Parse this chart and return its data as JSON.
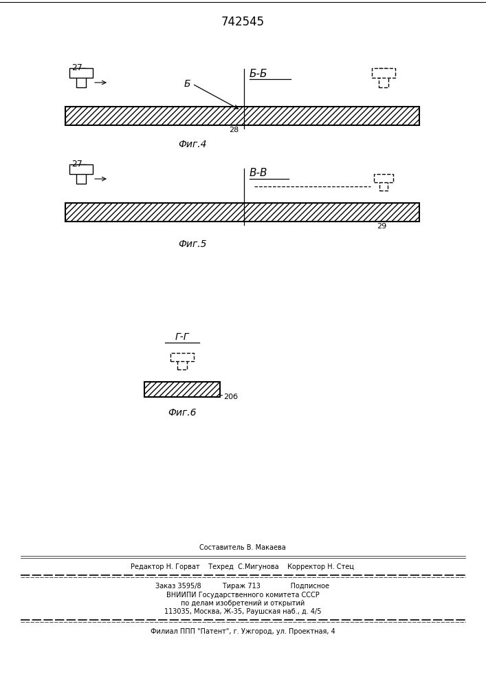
{
  "title": "742545",
  "bg_color": "#ffffff",
  "fig4_label": "Фиг.4",
  "fig5_label": "Фиг.5",
  "fig6_label": "Фиг.6",
  "section_bb": "Б-Б",
  "section_vv": "В-В",
  "section_gg": "Г-Г",
  "label_27_fig4": "27",
  "label_28": "28",
  "label_27_fig5": "27",
  "label_29": "29",
  "label_20b": "20б",
  "arrow_b": "Б",
  "footer_line0": "Составитель В. Макаева",
  "footer_line1": "Редактор Н. Горват    Техред  С.Мигунова    Корректор Н. Стец",
  "footer_line2": "Заказ 3595/8          Тираж 713              Подписное",
  "footer_line3": "ВНИИПИ Государственного комитета СССР",
  "footer_line4": "по делам изобретений и открытий",
  "footer_line5": "113035, Москва, Ж-35, Раушская наб., д. 4/5",
  "footer_line6": "Филиал ППП \"Патент\", г. Ужгород, ул. Проектная, 4"
}
